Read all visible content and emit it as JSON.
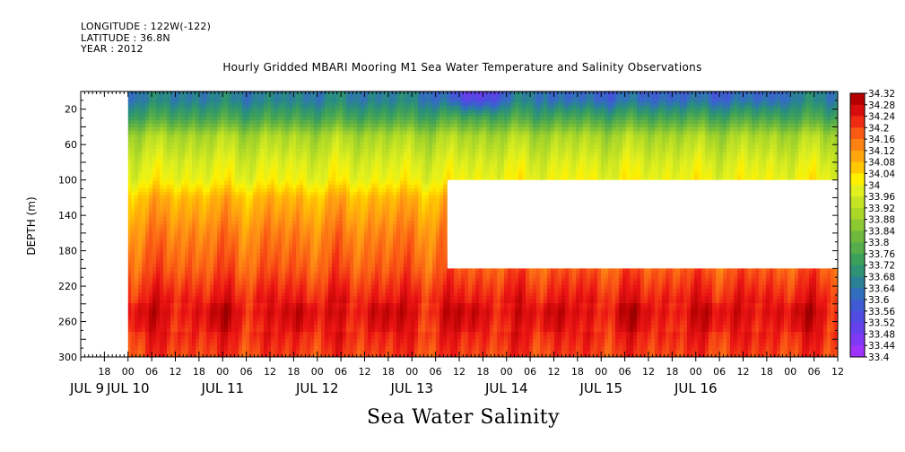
{
  "header": {
    "longitude": "LONGITUDE : 122W(-122)",
    "latitude": "LATITUDE : 36.8N",
    "year": "YEAR : 2012"
  },
  "title": "Hourly Gridded MBARI Mooring M1 Sea Water Temperature and Salinity Observations",
  "caption": "Sea Water Salinity",
  "chart_data": {
    "type": "heatmap",
    "title": "Hourly Gridded MBARI Mooring M1 Sea Water Temperature and Salinity Observations",
    "variable": "Sea Water Salinity",
    "ylabel": "DEPTH (m)",
    "xlabel": "",
    "y_axis": {
      "range": [
        0,
        300
      ],
      "inverted": true,
      "ticks": [
        20,
        60,
        100,
        140,
        180,
        220,
        260,
        300
      ]
    },
    "x_axis": {
      "hour_ticks": [
        "18",
        "00",
        "06",
        "12",
        "18",
        "00",
        "06",
        "12",
        "18",
        "00",
        "06",
        "12",
        "18",
        "00",
        "06",
        "12",
        "18",
        "00",
        "06",
        "12",
        "18",
        "00",
        "06",
        "12",
        "18",
        "00",
        "06",
        "12",
        "18",
        "00",
        "06",
        "12"
      ],
      "day_labels": [
        "JUL 9",
        "JUL 10",
        "JUL 11",
        "JUL 12",
        "JUL 13",
        "JUL 14",
        "JUL 15",
        "JUL 16"
      ],
      "range_hours_from_jul9_00": [
        12,
        204
      ]
    },
    "colorbar": {
      "min": 33.4,
      "max": 34.32,
      "step": 0.04,
      "labels": [
        "34.32",
        "34.28",
        "34.24",
        "34.2",
        "34.16",
        "34.12",
        "34.08",
        "34.04",
        "34",
        "33.96",
        "33.92",
        "33.88",
        "33.84",
        "33.8",
        "33.76",
        "33.72",
        "33.68",
        "33.64",
        "33.6",
        "33.56",
        "33.52",
        "33.48",
        "33.44",
        "33.4"
      ]
    },
    "depth_profile_typical": [
      {
        "depth": 10,
        "salinity": 33.66
      },
      {
        "depth": 30,
        "salinity": 33.76
      },
      {
        "depth": 50,
        "salinity": 33.9
      },
      {
        "depth": 80,
        "salinity": 33.97
      },
      {
        "depth": 100,
        "salinity": 34.0
      },
      {
        "depth": 120,
        "salinity": 34.08
      },
      {
        "depth": 160,
        "salinity": 34.14
      },
      {
        "depth": 200,
        "salinity": 34.18
      },
      {
        "depth": 250,
        "salinity": 34.26
      },
      {
        "depth": 300,
        "salinity": 34.2
      }
    ],
    "missing_data": [
      {
        "from_hour": 12,
        "to_hour": 24,
        "depth_range": [
          0,
          300
        ]
      },
      {
        "from_hour": 105,
        "to_hour": 204,
        "depth_range": [
          100,
          200
        ]
      }
    ],
    "grid": false,
    "legend": "right colorbar"
  }
}
